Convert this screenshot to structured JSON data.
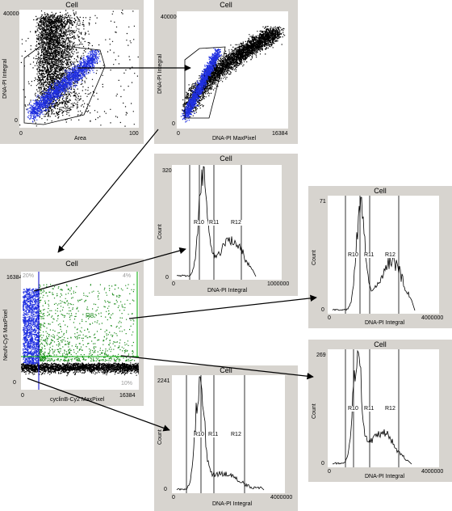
{
  "panels": {
    "p1": {
      "title": "Cell",
      "ylabel": "DNA-PI Integral",
      "xlabel": "Area",
      "ytick_top": "4000000",
      "ytick_bottom": "0",
      "xtick_left": "0",
      "xtick_right": "100"
    },
    "p2": {
      "title": "Cell",
      "ylabel": "DNA-PI Integral",
      "xlabel": "DNA-PI MaxPixel",
      "ytick_top": "4000000",
      "ytick_bottom": "0",
      "xtick_left": "0",
      "xtick_right": "16384"
    },
    "p3": {
      "title": "Cell",
      "ylabel": "NeuN-Cy5 MaxPixel",
      "xlabel": "cyclinB-Cy2 MaxPixel",
      "ytick_top": "16384",
      "ytick_bottom": "0",
      "xtick_left": "0",
      "xtick_right": "16384",
      "pct_top_left": "20%",
      "pct_top_right": "4%",
      "pct_bottom_right": "10%",
      "region_blue": "R9",
      "region_green": "R8"
    },
    "h1": {
      "title": "Cell",
      "ylabel": "Count",
      "xlabel": "DNA-PI Integral",
      "ytick_top": "320",
      "ytick_bottom": "0",
      "xtick_left": "0",
      "xtick_right": "1000000",
      "regions": [
        "R10",
        "R11",
        "R12"
      ]
    },
    "h2": {
      "title": "Cell",
      "ylabel": "Count",
      "xlabel": "DNA-PI Integral",
      "ytick_top": "71",
      "ytick_bottom": "0",
      "xtick_left": "0",
      "xtick_right": "4000000",
      "regions": [
        "R10",
        "R11",
        "R12"
      ]
    },
    "h3": {
      "title": "Cell",
      "ylabel": "Count",
      "xlabel": "DNA-PI Integral",
      "ytick_top": "269",
      "ytick_bottom": "0",
      "xtick_left": "0",
      "xtick_right": "4000000",
      "regions": [
        "R10",
        "R11",
        "R12"
      ]
    },
    "h4": {
      "title": "Cell",
      "ylabel": "Count",
      "xlabel": "DNA-PI Integral",
      "ytick_top": "2241",
      "ytick_bottom": "0",
      "xtick_left": "0",
      "xtick_right": "4000000",
      "regions": [
        "R10",
        "R11",
        "R12"
      ]
    }
  },
  "colors": {
    "panel_bg": "#d7d4cf",
    "dots_black": "#000000",
    "dots_blue": "#1f2fe0",
    "dots_green": "#1a8a1a",
    "gate_blue": "#0000cc",
    "gate_green": "#00aa00"
  }
}
